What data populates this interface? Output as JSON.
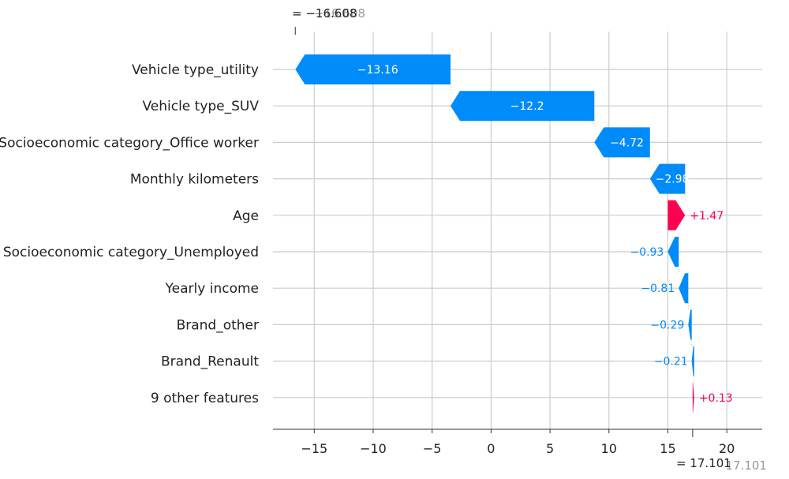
{
  "chart_data": {
    "type": "bar",
    "chart_kind": "shap waterfall",
    "title": "",
    "xlabel": "",
    "ylabel": "",
    "xlim": [
      -18.5,
      23
    ],
    "xticks": [
      -15,
      -10,
      -5,
      0,
      5,
      10,
      15,
      20
    ],
    "xtick_labels": [
      "−15",
      "−10",
      "−5",
      "0",
      "5",
      "10",
      "15",
      "20"
    ],
    "grid": true,
    "colors": {
      "positive": "#ff0051",
      "negative": "#008bfb",
      "grid": "#cccccc",
      "text": "#222222",
      "muted": "#999999"
    },
    "base_value": 17.101,
    "output_value": -16.608,
    "base_label": {
      "prefix": "= 17.101",
      "ghost": " 17.101"
    },
    "output_label": {
      "prefix": "= −16.608",
      "ghost": "−16.608"
    },
    "categories": [
      "Vehicle type_utility",
      "Vehicle type_SUV",
      "Socioeconomic category_Office worker",
      "Monthly kilometers",
      "Age",
      "Socioeconomic category_Unemployed",
      "Yearly income",
      "Brand_other",
      "Brand_Renault",
      "9 other features"
    ],
    "values": [
      -13.16,
      -12.2,
      -4.72,
      -2.98,
      1.47,
      -0.93,
      -0.81,
      -0.29,
      -0.21,
      0.13
    ],
    "value_labels": [
      "−13.16",
      "−12.2",
      "−4.72",
      "−2.98",
      "+1.47",
      "−0.93",
      "−0.81",
      "−0.29",
      "−0.21",
      "+0.13"
    ],
    "label_inside": [
      true,
      true,
      true,
      true,
      false,
      false,
      false,
      false,
      false,
      false
    ]
  }
}
